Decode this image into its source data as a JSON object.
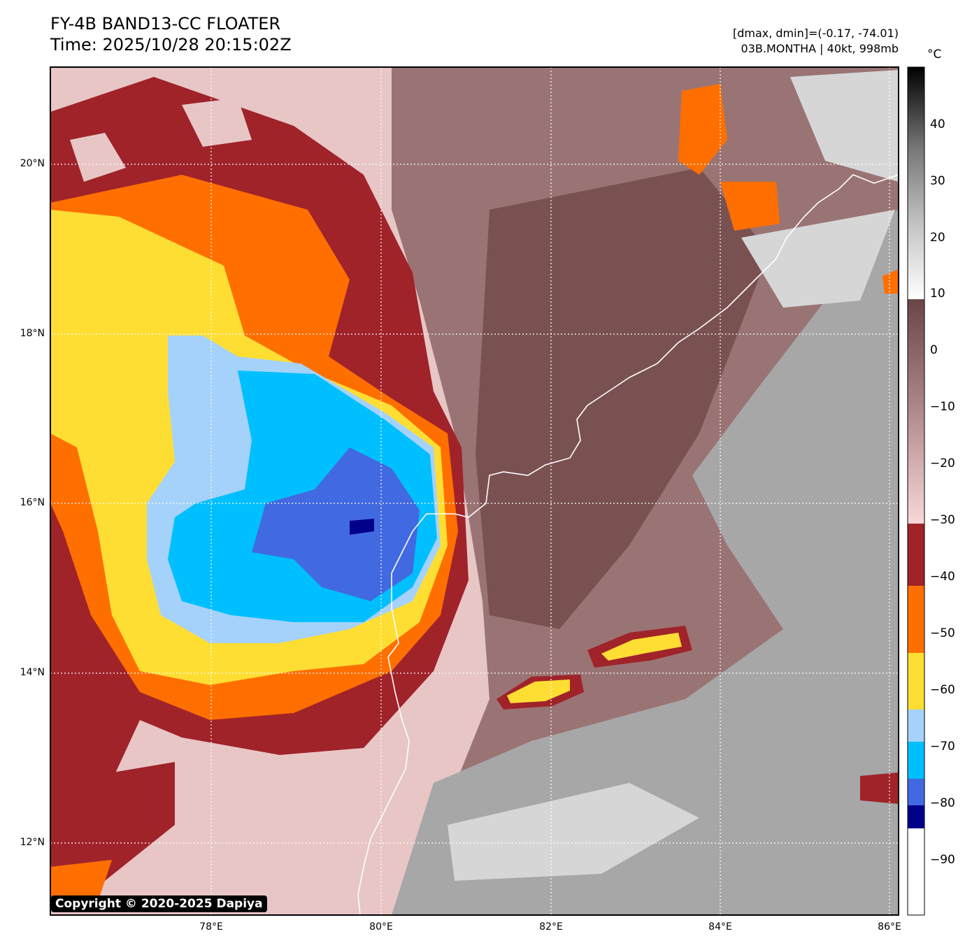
{
  "header": {
    "title_line1": "FY-4B BAND13-CC FLOATER",
    "title_line2": "Time: 2025/10/28 20:15:02Z",
    "info_line1": "[dmax, dmin]=(-0.17, -74.01)",
    "info_line2": "03B.MONTHA | 40kt, 998mb"
  },
  "axes": {
    "lat_labels": [
      "20°N",
      "18°N",
      "16°N",
      "14°N",
      "12°N"
    ],
    "lon_labels": [
      "78°E",
      "80°E",
      "82°E",
      "84°E",
      "86°E"
    ]
  },
  "colorbar": {
    "unit": "°C",
    "tick_labels": [
      "40",
      "30",
      "20",
      "10",
      "0",
      "−10",
      "−20",
      "−30",
      "−40",
      "−50",
      "−60",
      "−70",
      "−80",
      "−90"
    ],
    "bands": [
      {
        "color": "#ffffff"
      },
      {
        "color": "#00008b"
      },
      {
        "color": "#4169e1"
      },
      {
        "color": "#00bfff"
      },
      {
        "color": "#a5d2fa"
      },
      {
        "color": "#ffde33"
      },
      {
        "color": "#ff6f00"
      },
      {
        "color": "#a0232a"
      }
    ],
    "gradients": {
      "warm_mid": [
        "#f8d8da",
        "#b08a8a",
        "#6b4545"
      ],
      "hot_gray": [
        "#ffffff",
        "#c8c8c8",
        "#777777",
        "#000000"
      ]
    }
  },
  "colors": {
    "background_pink": "#e8c6c6",
    "mauve": "#9a7474",
    "dark_mauve": "#7a5151",
    "gray": "#a7a7a7",
    "light_gray": "#d6d6d6",
    "dark_red": "#a0232a",
    "orange": "#ff6f00",
    "yellow": "#ffde33",
    "light_blue": "#a5d2fa",
    "cyan": "#00bfff",
    "royal_blue": "#4169e1",
    "navy": "#00008b",
    "coast": "#ffffff"
  },
  "footer": {
    "copyright": "Copyright © 2020-2025 Dapiya"
  }
}
